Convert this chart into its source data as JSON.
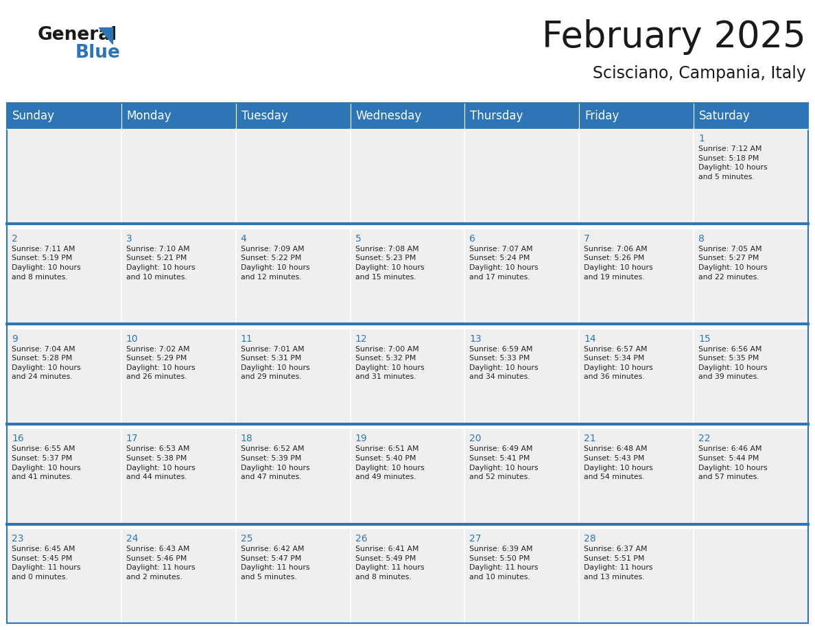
{
  "title": "February 2025",
  "subtitle": "Scisciano, Campania, Italy",
  "header_color": "#2E75B6",
  "header_text_color": "#FFFFFF",
  "cell_bg_color": "#EFEFEF",
  "border_color": "#2E75B6",
  "week_line_color": "#2E75B6",
  "day_headers": [
    "Sunday",
    "Monday",
    "Tuesday",
    "Wednesday",
    "Thursday",
    "Friday",
    "Saturday"
  ],
  "title_fontsize": 38,
  "subtitle_fontsize": 17,
  "header_fontsize": 12,
  "day_num_fontsize": 10,
  "cell_text_fontsize": 7.8,
  "logo_general_color": "#1a1a1a",
  "logo_blue_color": "#2E75B6",
  "logo_triangle_color": "#2E75B6",
  "weeks": [
    [
      {
        "day": null,
        "text": ""
      },
      {
        "day": null,
        "text": ""
      },
      {
        "day": null,
        "text": ""
      },
      {
        "day": null,
        "text": ""
      },
      {
        "day": null,
        "text": ""
      },
      {
        "day": null,
        "text": ""
      },
      {
        "day": 1,
        "text": "Sunrise: 7:12 AM\nSunset: 5:18 PM\nDaylight: 10 hours\nand 5 minutes."
      }
    ],
    [
      {
        "day": 2,
        "text": "Sunrise: 7:11 AM\nSunset: 5:19 PM\nDaylight: 10 hours\nand 8 minutes."
      },
      {
        "day": 3,
        "text": "Sunrise: 7:10 AM\nSunset: 5:21 PM\nDaylight: 10 hours\nand 10 minutes."
      },
      {
        "day": 4,
        "text": "Sunrise: 7:09 AM\nSunset: 5:22 PM\nDaylight: 10 hours\nand 12 minutes."
      },
      {
        "day": 5,
        "text": "Sunrise: 7:08 AM\nSunset: 5:23 PM\nDaylight: 10 hours\nand 15 minutes."
      },
      {
        "day": 6,
        "text": "Sunrise: 7:07 AM\nSunset: 5:24 PM\nDaylight: 10 hours\nand 17 minutes."
      },
      {
        "day": 7,
        "text": "Sunrise: 7:06 AM\nSunset: 5:26 PM\nDaylight: 10 hours\nand 19 minutes."
      },
      {
        "day": 8,
        "text": "Sunrise: 7:05 AM\nSunset: 5:27 PM\nDaylight: 10 hours\nand 22 minutes."
      }
    ],
    [
      {
        "day": 9,
        "text": "Sunrise: 7:04 AM\nSunset: 5:28 PM\nDaylight: 10 hours\nand 24 minutes."
      },
      {
        "day": 10,
        "text": "Sunrise: 7:02 AM\nSunset: 5:29 PM\nDaylight: 10 hours\nand 26 minutes."
      },
      {
        "day": 11,
        "text": "Sunrise: 7:01 AM\nSunset: 5:31 PM\nDaylight: 10 hours\nand 29 minutes."
      },
      {
        "day": 12,
        "text": "Sunrise: 7:00 AM\nSunset: 5:32 PM\nDaylight: 10 hours\nand 31 minutes."
      },
      {
        "day": 13,
        "text": "Sunrise: 6:59 AM\nSunset: 5:33 PM\nDaylight: 10 hours\nand 34 minutes."
      },
      {
        "day": 14,
        "text": "Sunrise: 6:57 AM\nSunset: 5:34 PM\nDaylight: 10 hours\nand 36 minutes."
      },
      {
        "day": 15,
        "text": "Sunrise: 6:56 AM\nSunset: 5:35 PM\nDaylight: 10 hours\nand 39 minutes."
      }
    ],
    [
      {
        "day": 16,
        "text": "Sunrise: 6:55 AM\nSunset: 5:37 PM\nDaylight: 10 hours\nand 41 minutes."
      },
      {
        "day": 17,
        "text": "Sunrise: 6:53 AM\nSunset: 5:38 PM\nDaylight: 10 hours\nand 44 minutes."
      },
      {
        "day": 18,
        "text": "Sunrise: 6:52 AM\nSunset: 5:39 PM\nDaylight: 10 hours\nand 47 minutes."
      },
      {
        "day": 19,
        "text": "Sunrise: 6:51 AM\nSunset: 5:40 PM\nDaylight: 10 hours\nand 49 minutes."
      },
      {
        "day": 20,
        "text": "Sunrise: 6:49 AM\nSunset: 5:41 PM\nDaylight: 10 hours\nand 52 minutes."
      },
      {
        "day": 21,
        "text": "Sunrise: 6:48 AM\nSunset: 5:43 PM\nDaylight: 10 hours\nand 54 minutes."
      },
      {
        "day": 22,
        "text": "Sunrise: 6:46 AM\nSunset: 5:44 PM\nDaylight: 10 hours\nand 57 minutes."
      }
    ],
    [
      {
        "day": 23,
        "text": "Sunrise: 6:45 AM\nSunset: 5:45 PM\nDaylight: 11 hours\nand 0 minutes."
      },
      {
        "day": 24,
        "text": "Sunrise: 6:43 AM\nSunset: 5:46 PM\nDaylight: 11 hours\nand 2 minutes."
      },
      {
        "day": 25,
        "text": "Sunrise: 6:42 AM\nSunset: 5:47 PM\nDaylight: 11 hours\nand 5 minutes."
      },
      {
        "day": 26,
        "text": "Sunrise: 6:41 AM\nSunset: 5:49 PM\nDaylight: 11 hours\nand 8 minutes."
      },
      {
        "day": 27,
        "text": "Sunrise: 6:39 AM\nSunset: 5:50 PM\nDaylight: 11 hours\nand 10 minutes."
      },
      {
        "day": 28,
        "text": "Sunrise: 6:37 AM\nSunset: 5:51 PM\nDaylight: 11 hours\nand 13 minutes."
      },
      {
        "day": null,
        "text": ""
      }
    ]
  ]
}
